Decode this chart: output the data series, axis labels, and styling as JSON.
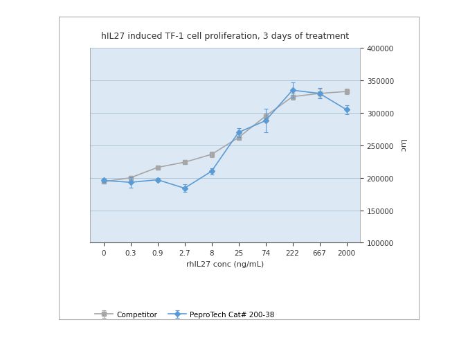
{
  "title": "hIL27 induced TF-1 cell proliferation, 3 days of treatment",
  "xlabel": "rhIL27 conc (ng/mL)",
  "ylabel": "Luc",
  "x_labels": [
    "0",
    "0.3",
    "0.9",
    "2.7",
    "8",
    "25",
    "74",
    "222",
    "667",
    "2000"
  ],
  "x_positions": [
    0,
    1,
    2,
    3,
    4,
    5,
    6,
    7,
    8,
    9
  ],
  "pepro_values": [
    196000,
    193000,
    197000,
    184000,
    210000,
    270000,
    288000,
    335000,
    330000,
    305000
  ],
  "pepro_errors": [
    3000,
    8000,
    3000,
    6000,
    5000,
    7000,
    18000,
    12000,
    8000,
    7000
  ],
  "comp_values": [
    194000,
    200000,
    216000,
    224000,
    236000,
    262000,
    295000,
    325000,
    330000,
    333000
  ],
  "comp_errors": [
    2000,
    3000,
    3000,
    3000,
    4000,
    3000,
    5000,
    5000,
    7000,
    4000
  ],
  "pepro_color": "#5b9bd5",
  "comp_color": "#a6a6a6",
  "ylim": [
    100000,
    400000
  ],
  "yticks": [
    100000,
    150000,
    200000,
    250000,
    300000,
    350000,
    400000
  ],
  "legend_pepro": "PeproTech Cat# 200-38",
  "legend_comp": "Competitor",
  "bg_color": "#dce9f5",
  "panel_bg": "#ffffff",
  "title_fontsize": 9,
  "axis_fontsize": 8,
  "tick_fontsize": 7.5,
  "legend_fontsize": 7.5
}
